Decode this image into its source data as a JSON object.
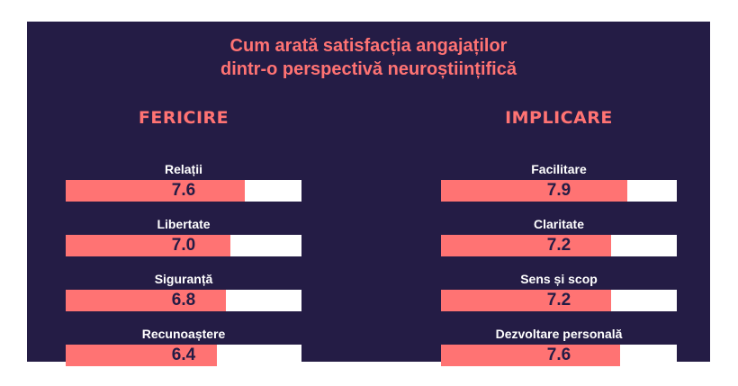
{
  "title_line1": "Cum arată satisfacția angajaților",
  "title_line2": "dintr-o perspectivă neuroștiințifică",
  "colors": {
    "background": "#241c45",
    "accent": "#ff7373",
    "track": "#ffffff",
    "label": "#ffffff"
  },
  "chart_data": {
    "type": "bar",
    "orientation": "horizontal",
    "scale_max": 10,
    "groups": [
      {
        "name": "FERICIRE",
        "items": [
          {
            "label": "Relații",
            "value": 7.6
          },
          {
            "label": "Libertate",
            "value": 7.0
          },
          {
            "label": "Siguranță",
            "value": 6.8
          },
          {
            "label": "Recunoaștere",
            "value": 6.4
          }
        ]
      },
      {
        "name": "IMPLICARE",
        "items": [
          {
            "label": "Facilitare",
            "value": 7.9
          },
          {
            "label": "Claritate",
            "value": 7.2
          },
          {
            "label": "Sens și scop",
            "value": 7.2
          },
          {
            "label": "Dezvoltare personală",
            "value": 7.6
          }
        ]
      }
    ]
  }
}
